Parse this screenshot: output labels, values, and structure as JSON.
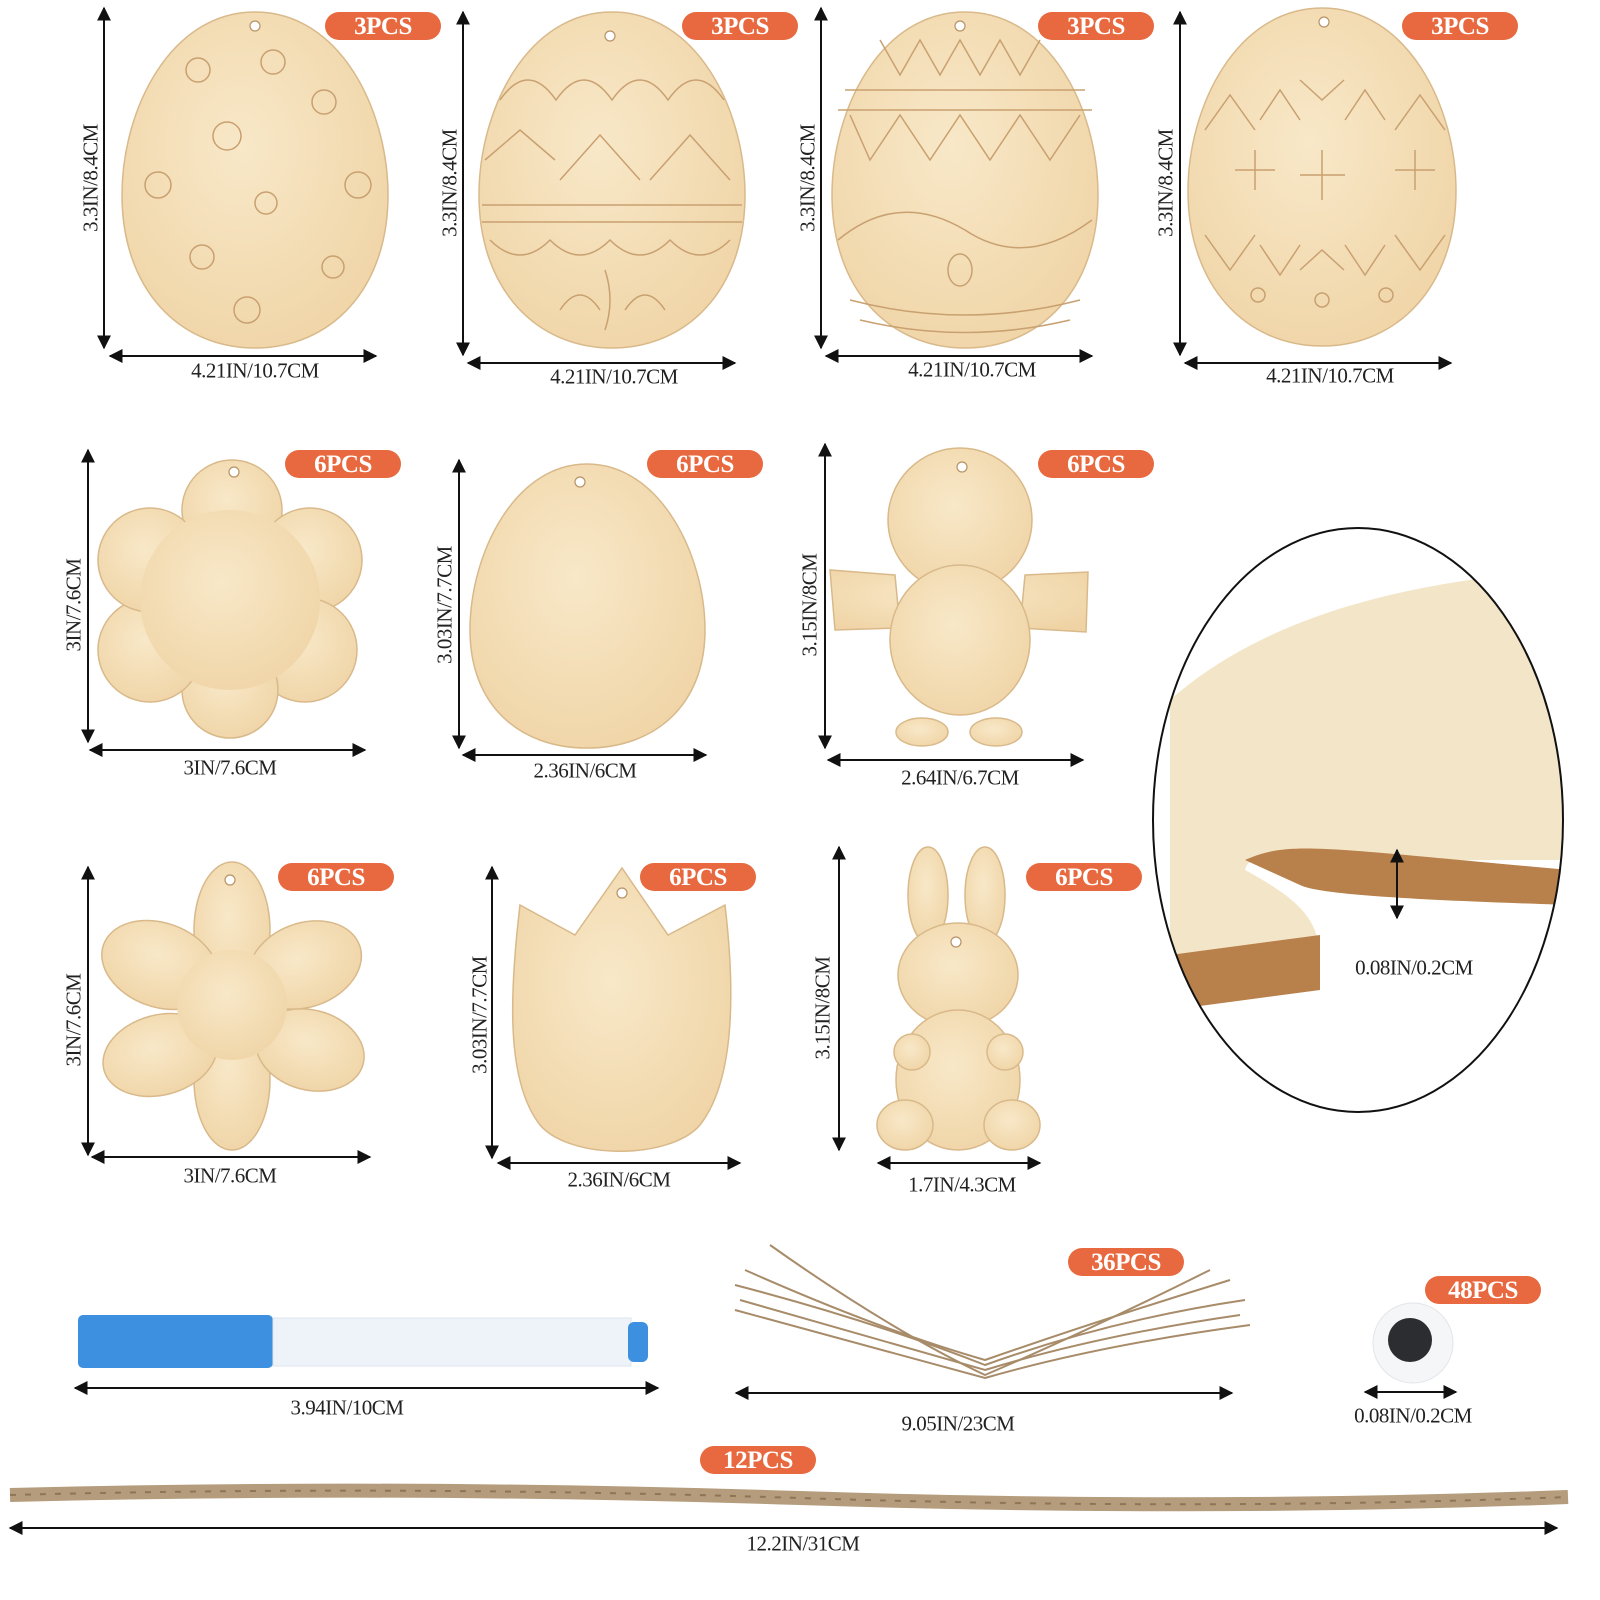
{
  "colors": {
    "badge": "#E8693F",
    "wood": "#F3DDB5",
    "wood_edge": "#D9B98A",
    "arrow": "#111111",
    "twine": "#A88C6A"
  },
  "eggs_patterned": [
    {
      "badge": "3PCS",
      "width": "4.21IN/10.7CM",
      "height": "3.3IN/8.4CM",
      "pattern": "flowers"
    },
    {
      "badge": "3PCS",
      "width": "4.21IN/10.7CM",
      "height": "3.3IN/8.4CM",
      "pattern": "arches"
    },
    {
      "badge": "3PCS",
      "width": "4.21IN/10.7CM",
      "height": "3.3IN/8.4CM",
      "pattern": "zigzag"
    },
    {
      "badge": "3PCS",
      "width": "4.21IN/10.7CM",
      "height": "3.3IN/8.4CM",
      "pattern": "crosses"
    }
  ],
  "blanks": [
    {
      "shape": "flower",
      "badge": "6PCS",
      "width": "3IN/7.6CM",
      "height": "3IN/7.6CM"
    },
    {
      "shape": "egg",
      "badge": "6PCS",
      "width": "2.36IN/6CM",
      "height": "3.03IN/7.7CM"
    },
    {
      "shape": "chick",
      "badge": "6PCS",
      "width": "2.64IN/6.7CM",
      "height": "3.15IN/8CM"
    },
    {
      "shape": "daisy",
      "badge": "6PCS",
      "width": "3IN/7.6CM",
      "height": "3IN/7.6CM"
    },
    {
      "shape": "tulip",
      "badge": "6PCS",
      "width": "2.36IN/6CM",
      "height": "3.03IN/7.7CM"
    },
    {
      "shape": "bunny",
      "badge": "6PCS",
      "width": "1.7IN/4.3CM",
      "height": "3.15IN/8CM"
    }
  ],
  "thickness_detail": {
    "label": "0.08IN/0.2CM"
  },
  "accessories": {
    "marker": {
      "width": "3.94IN/10CM"
    },
    "twine_bundle": {
      "badge": "36PCS",
      "width": "9.05IN/23CM"
    },
    "googly_eyes": {
      "badge": "48PCS",
      "width": "0.08IN/0.2CM"
    },
    "long_twine": {
      "badge": "12PCS",
      "width": "12.2IN/31CM"
    }
  }
}
